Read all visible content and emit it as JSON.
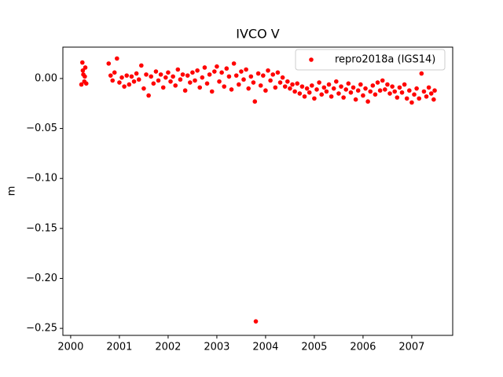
{
  "chart_data": {
    "type": "scatter",
    "title": "IVCO V",
    "ylabel": "m",
    "legend": "upper right",
    "xlim": [
      1999.84,
      2007.84
    ],
    "ylim": [
      -0.257,
      0.0314
    ],
    "xticks": [
      2000,
      2001,
      2002,
      2003,
      2004,
      2005,
      2006,
      2007
    ],
    "yticks": [
      {
        "value": 0.0,
        "label": "0.00"
      },
      {
        "value": -0.05,
        "label": "−0.05"
      },
      {
        "value": -0.1,
        "label": "−0.10"
      },
      {
        "value": -0.15,
        "label": "−0.15"
      },
      {
        "value": -0.2,
        "label": "−0.20"
      },
      {
        "value": -0.25,
        "label": "−0.25"
      }
    ],
    "x": [
      2000.22,
      2000.24,
      2000.25,
      2000.26,
      2000.28,
      2000.29,
      2000.3,
      2000.32,
      2000.78,
      2000.82,
      2000.86,
      2000.9,
      2000.95,
      2001.0,
      2001.05,
      2001.1,
      2001.15,
      2001.2,
      2001.25,
      2001.3,
      2001.35,
      2001.4,
      2001.45,
      2001.5,
      2001.55,
      2001.6,
      2001.65,
      2001.7,
      2001.75,
      2001.8,
      2001.85,
      2001.9,
      2001.95,
      2002.0,
      2002.05,
      2002.1,
      2002.15,
      2002.2,
      2002.25,
      2002.3,
      2002.35,
      2002.4,
      2002.45,
      2002.5,
      2002.55,
      2002.6,
      2002.65,
      2002.7,
      2002.75,
      2002.8,
      2002.85,
      2002.9,
      2002.95,
      2003.0,
      2003.05,
      2003.1,
      2003.15,
      2003.2,
      2003.25,
      2003.3,
      2003.35,
      2003.4,
      2003.45,
      2003.5,
      2003.55,
      2003.6,
      2003.65,
      2003.7,
      2003.75,
      2003.78,
      2003.8,
      2003.85,
      2003.9,
      2003.95,
      2004.0,
      2004.05,
      2004.1,
      2004.15,
      2004.2,
      2004.25,
      2004.3,
      2004.35,
      2004.4,
      2004.45,
      2004.5,
      2004.55,
      2004.6,
      2004.65,
      2004.7,
      2004.75,
      2004.8,
      2004.85,
      2004.9,
      2004.95,
      2005.0,
      2005.05,
      2005.1,
      2005.15,
      2005.2,
      2005.25,
      2005.3,
      2005.35,
      2005.4,
      2005.45,
      2005.5,
      2005.55,
      2005.6,
      2005.65,
      2005.7,
      2005.75,
      2005.8,
      2005.85,
      2005.9,
      2005.95,
      2006.0,
      2006.05,
      2006.1,
      2006.15,
      2006.2,
      2006.25,
      2006.3,
      2006.35,
      2006.4,
      2006.45,
      2006.5,
      2006.55,
      2006.6,
      2006.65,
      2006.7,
      2006.75,
      2006.8,
      2006.85,
      2006.9,
      2006.95,
      2007.0,
      2007.05,
      2007.1,
      2007.15,
      2007.2,
      2007.25,
      2007.3,
      2007.35,
      2007.4,
      2007.45,
      2007.47
    ],
    "series": [
      {
        "name": "repro2018a (IGS14)",
        "color": "#ff0000",
        "values": [
          -0.006,
          0.016,
          0.008,
          0.004,
          -0.003,
          0.002,
          0.011,
          -0.005,
          0.015,
          0.003,
          -0.002,
          0.006,
          0.02,
          -0.004,
          0.001,
          -0.008,
          0.003,
          -0.006,
          0.002,
          -0.003,
          0.005,
          -0.001,
          0.013,
          -0.01,
          0.004,
          -0.017,
          0.002,
          -0.005,
          0.007,
          -0.002,
          0.004,
          -0.009,
          0.001,
          0.006,
          -0.003,
          0.002,
          -0.007,
          0.009,
          -0.001,
          0.004,
          -0.012,
          0.003,
          -0.004,
          0.006,
          -0.002,
          0.008,
          -0.009,
          0.001,
          0.011,
          -0.005,
          0.004,
          -0.013,
          0.007,
          0.012,
          -0.003,
          0.006,
          -0.008,
          0.01,
          0.002,
          -0.011,
          0.015,
          0.003,
          -0.006,
          0.007,
          -0.001,
          0.009,
          -0.01,
          0.002,
          -0.004,
          -0.023,
          -0.243,
          0.005,
          -0.007,
          0.003,
          -0.012,
          0.008,
          -0.002,
          0.004,
          -0.009,
          0.006,
          -0.004,
          0.001,
          -0.008,
          -0.003,
          -0.01,
          -0.006,
          -0.013,
          -0.005,
          -0.015,
          -0.008,
          -0.018,
          -0.01,
          -0.014,
          -0.007,
          -0.02,
          -0.011,
          -0.004,
          -0.016,
          -0.009,
          -0.013,
          -0.006,
          -0.018,
          -0.01,
          -0.003,
          -0.015,
          -0.008,
          -0.019,
          -0.011,
          -0.005,
          -0.014,
          -0.009,
          -0.021,
          -0.012,
          -0.006,
          -0.017,
          -0.01,
          -0.023,
          -0.013,
          -0.007,
          -0.016,
          -0.004,
          -0.012,
          -0.002,
          -0.011,
          -0.006,
          -0.015,
          -0.008,
          -0.013,
          -0.019,
          -0.009,
          -0.014,
          -0.006,
          -0.02,
          -0.012,
          -0.024,
          -0.016,
          -0.01,
          -0.02,
          0.005,
          -0.013,
          -0.018,
          -0.009,
          -0.015,
          -0.021,
          -0.012
        ]
      }
    ]
  }
}
